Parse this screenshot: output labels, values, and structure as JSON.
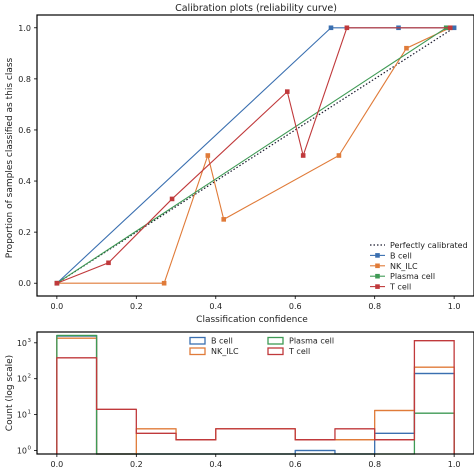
{
  "chart_data": [
    {
      "type": "line",
      "title": "Calibration plots (reliability curve)",
      "xlabel": "Classification confidence",
      "ylabel": "Proportion of samples classified as this class",
      "xlim": [
        -0.05,
        1.05
      ],
      "ylim": [
        -0.05,
        1.05
      ],
      "xticks": [
        "0.0",
        "0.2",
        "0.4",
        "0.6",
        "0.8",
        "1.0"
      ],
      "yticks": [
        "0.0",
        "0.2",
        "0.4",
        "0.6",
        "0.8",
        "1.0"
      ],
      "grid": false,
      "legend_position": "lower-right",
      "reference": {
        "name": "Perfectly calibrated",
        "x": [
          0,
          1
        ],
        "y": [
          0,
          1
        ],
        "style": "dotted",
        "color": "#1a1a2e"
      },
      "series": [
        {
          "name": "B cell",
          "color": "#3a6fb0",
          "x": [
            0.0,
            0.69,
            0.86,
            1.0
          ],
          "y": [
            0.0,
            1.0,
            1.0,
            1.0
          ]
        },
        {
          "name": "NK_ILC",
          "color": "#e07b39",
          "x": [
            0.0,
            0.27,
            0.38,
            0.42,
            0.71,
            0.88,
            0.99
          ],
          "y": [
            0.0,
            0.0,
            0.5,
            0.25,
            0.5,
            0.92,
            1.0
          ]
        },
        {
          "name": "Plasma cell",
          "color": "#3f9a55",
          "x": [
            0.0,
            0.98
          ],
          "y": [
            0.0,
            1.0
          ]
        },
        {
          "name": "T cell",
          "color": "#c0393b",
          "x": [
            0.0,
            0.13,
            0.29,
            0.58,
            0.62,
            0.73,
            0.99
          ],
          "y": [
            0.0,
            0.08,
            0.33,
            0.75,
            0.5,
            1.0,
            1.0
          ]
        }
      ]
    },
    {
      "type": "bar",
      "histtype": "step",
      "xlabel": "",
      "ylabel": "Count (log scale)",
      "yscale": "log",
      "xlim": [
        -0.05,
        1.05
      ],
      "ylim": [
        0.8,
        2000
      ],
      "bin_edges": [
        0.0,
        0.1,
        0.2,
        0.3,
        0.4,
        0.5,
        0.6,
        0.7,
        0.8,
        0.9,
        1.0
      ],
      "xticks": [
        "0.0",
        "0.2",
        "0.4",
        "0.6",
        "0.8",
        "1.0"
      ],
      "yticks": [
        {
          "value": 1,
          "base": "10",
          "exp": "0"
        },
        {
          "value": 10,
          "base": "10",
          "exp": "1"
        },
        {
          "value": 100,
          "base": "10",
          "exp": "2"
        },
        {
          "value": 1000,
          "base": "10",
          "exp": "3"
        }
      ],
      "legend_position": "top-center",
      "series": [
        {
          "name": "B cell",
          "color": "#3a6fb0",
          "values": [
            1550,
            0,
            0,
            0,
            0,
            0,
            1,
            0,
            3,
            140
          ]
        },
        {
          "name": "NK_ILC",
          "color": "#e07b39",
          "values": [
            1350,
            0,
            4,
            2,
            4,
            4,
            2,
            2,
            13,
            210
          ]
        },
        {
          "name": "Plasma cell",
          "color": "#3f9a55",
          "values": [
            1600,
            0,
            0,
            0,
            0,
            0,
            0,
            0,
            0,
            11
          ]
        },
        {
          "name": "T cell",
          "color": "#c0393b",
          "values": [
            380,
            14,
            3,
            2,
            4,
            4,
            2,
            4,
            2,
            1150
          ]
        }
      ]
    }
  ]
}
